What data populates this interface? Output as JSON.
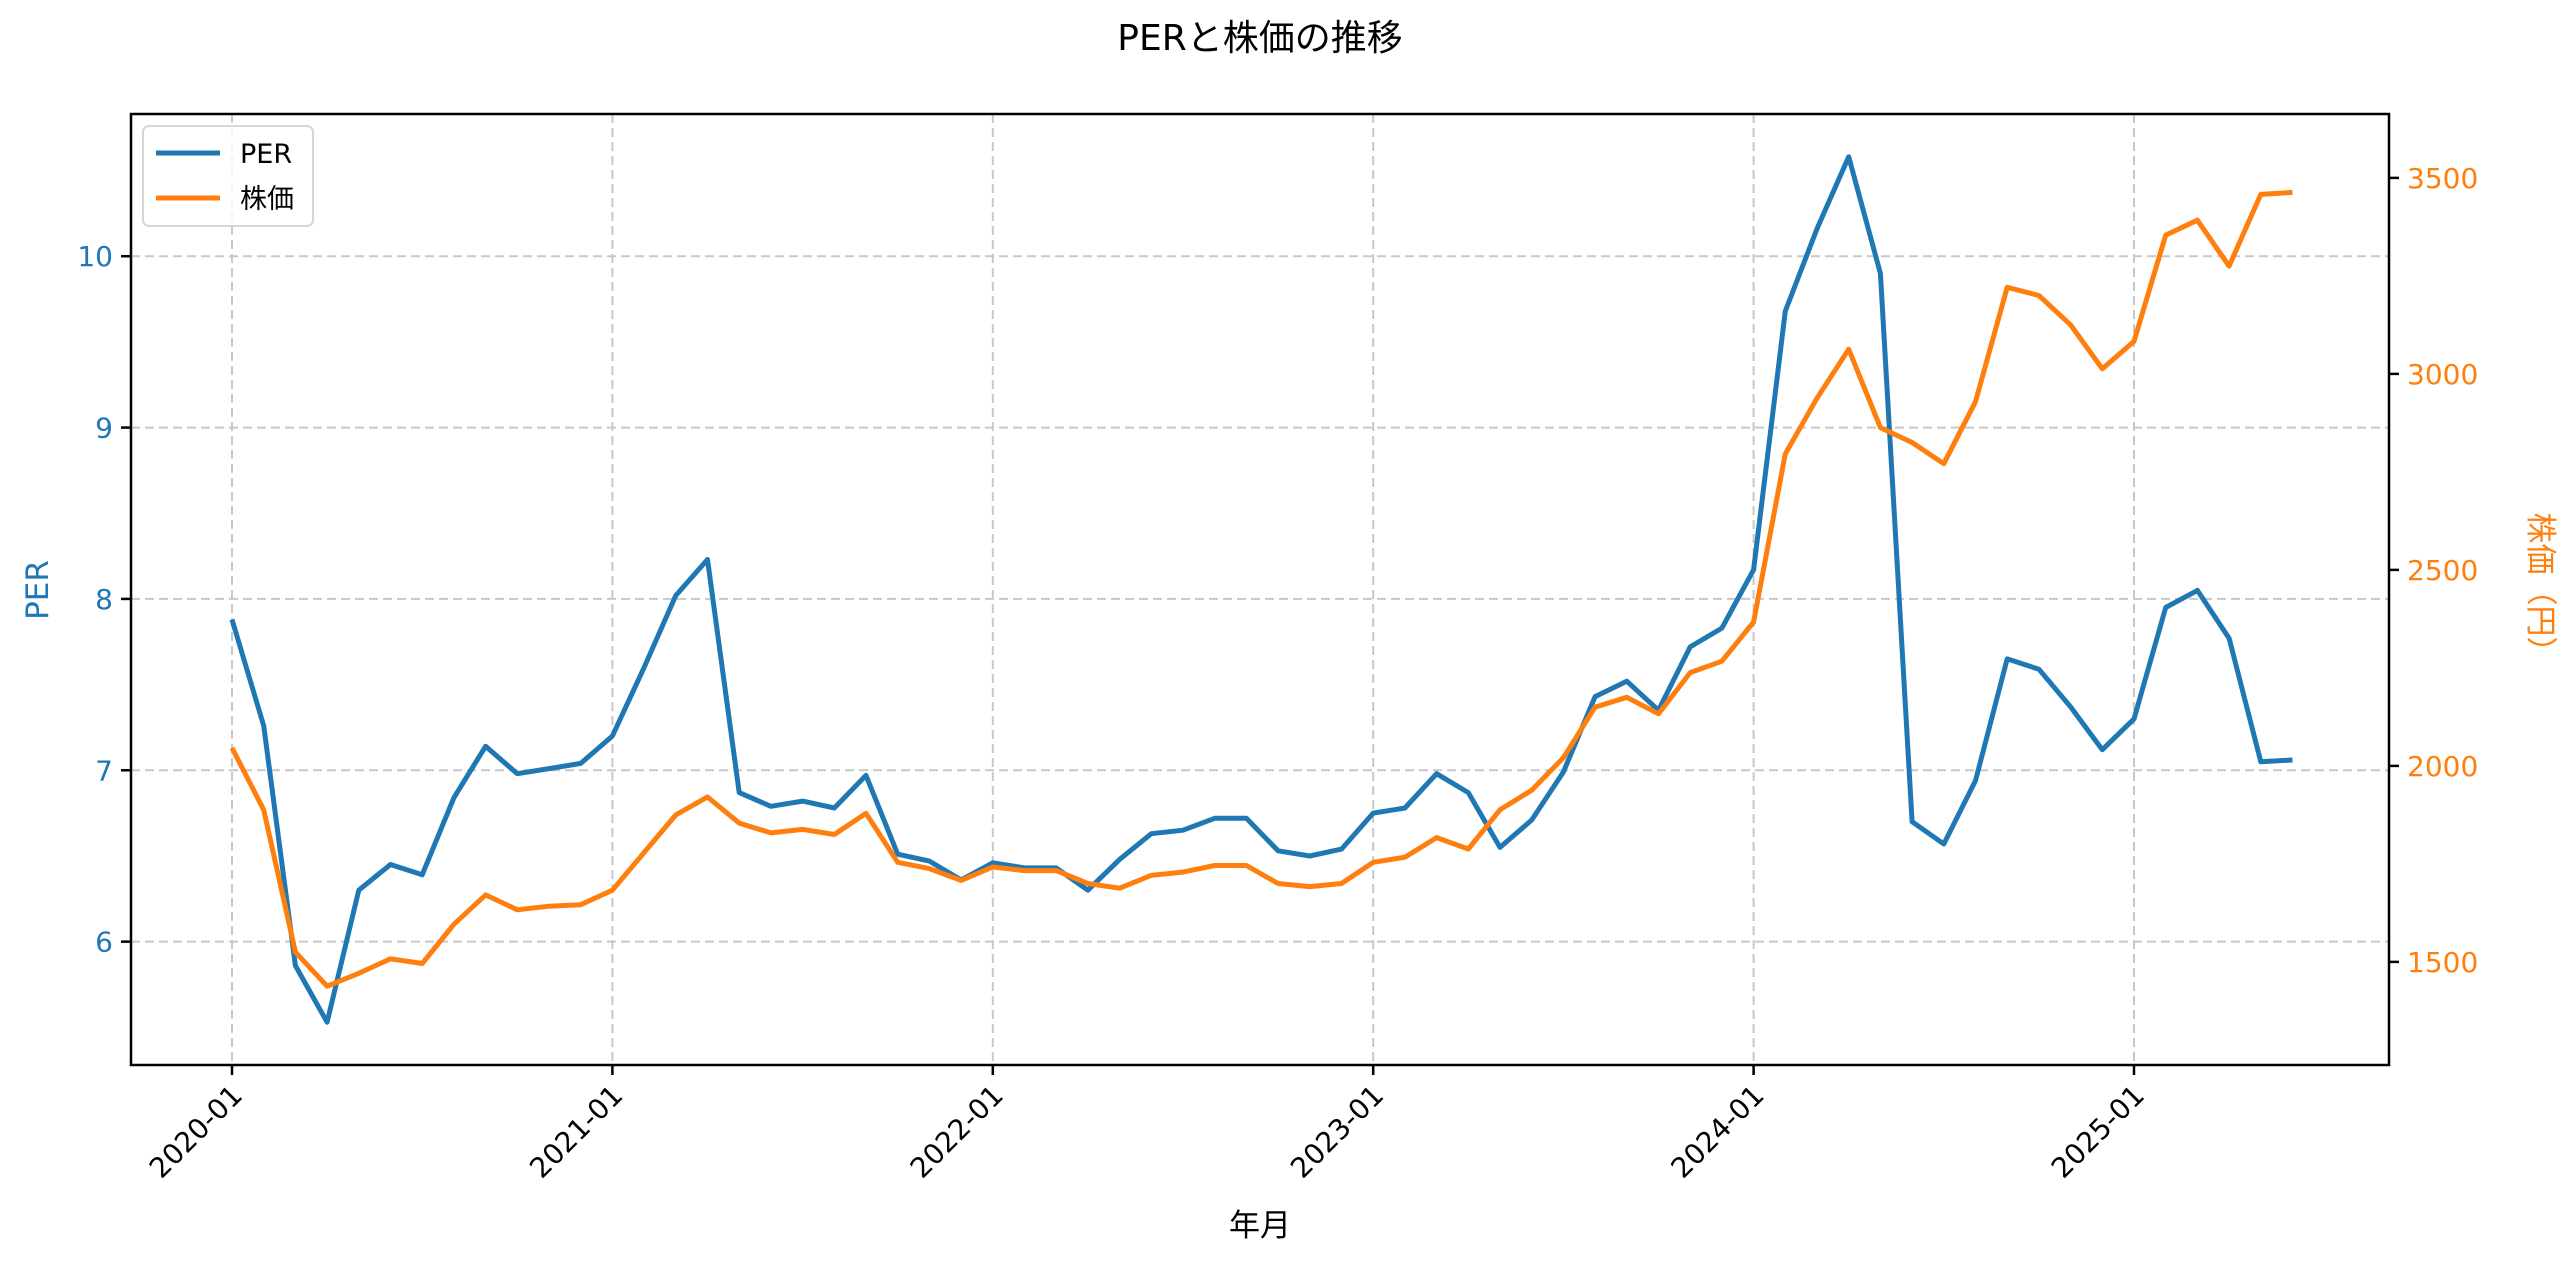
{
  "chart_data": {
    "type": "line",
    "title": "PERと株価の推移",
    "xlabel": "年月",
    "ylabel": "PER",
    "ylabel_right": "株価（円）",
    "x_tick_labels": [
      "2020-01",
      "2021-01",
      "2022-01",
      "2023-01",
      "2024-01",
      "2025-01"
    ],
    "y_ticks_left": [
      6,
      7,
      8,
      9,
      10
    ],
    "y_ticks_right": [
      1500,
      2000,
      2500,
      3000,
      3500
    ],
    "ylim_left": [
      5.28,
      10.83
    ],
    "ylim_right": [
      1237,
      3663
    ],
    "grid": true,
    "legend_position": "upper left",
    "x": [
      "2020-01",
      "2020-02",
      "2020-03",
      "2020-04",
      "2020-05",
      "2020-06",
      "2020-07",
      "2020-08",
      "2020-09",
      "2020-10",
      "2020-11",
      "2020-12",
      "2021-01",
      "2021-02",
      "2021-03",
      "2021-04",
      "2021-05",
      "2021-06",
      "2021-07",
      "2021-08",
      "2021-09",
      "2021-10",
      "2021-11",
      "2021-12",
      "2022-01",
      "2022-02",
      "2022-03",
      "2022-04",
      "2022-05",
      "2022-06",
      "2022-07",
      "2022-08",
      "2022-09",
      "2022-10",
      "2022-11",
      "2022-12",
      "2023-01",
      "2023-02",
      "2023-03",
      "2023-04",
      "2023-05",
      "2023-06",
      "2023-07",
      "2023-08",
      "2023-09",
      "2023-10",
      "2023-11",
      "2023-12",
      "2024-01",
      "2024-02",
      "2024-03",
      "2024-04",
      "2024-05",
      "2024-06",
      "2024-07",
      "2024-08",
      "2024-09",
      "2024-10",
      "2024-11",
      "2024-12",
      "2025-01",
      "2025-02",
      "2025-03",
      "2025-04",
      "2025-05",
      "2025-06"
    ],
    "series": [
      {
        "name": "PER",
        "axis": "left",
        "color": "#1f77b4",
        "values": [
          7.88,
          7.26,
          5.86,
          5.53,
          6.3,
          6.45,
          6.39,
          6.84,
          7.14,
          6.98,
          7.01,
          7.04,
          7.2,
          7.6,
          8.02,
          8.23,
          6.87,
          6.79,
          6.82,
          6.78,
          6.97,
          6.51,
          6.47,
          6.36,
          6.46,
          6.43,
          6.43,
          6.3,
          6.48,
          6.63,
          6.65,
          6.72,
          6.72,
          6.53,
          6.5,
          6.54,
          6.75,
          6.78,
          6.98,
          6.87,
          6.55,
          6.71,
          6.99,
          7.43,
          7.52,
          7.35,
          7.72,
          7.83,
          8.17,
          9.68,
          10.16,
          10.58,
          9.9,
          6.7,
          6.57,
          6.94,
          7.65,
          7.59,
          7.37,
          7.12,
          7.3,
          7.95,
          8.05,
          7.77,
          7.05,
          7.06
        ]
      },
      {
        "name": "株価",
        "axis": "right",
        "color": "#ff7f0e",
        "values": [
          2046,
          1888,
          1525,
          1438,
          1471,
          1508,
          1496,
          1596,
          1671,
          1633,
          1642,
          1646,
          1683,
          1779,
          1875,
          1921,
          1854,
          1829,
          1838,
          1825,
          1879,
          1754,
          1738,
          1708,
          1742,
          1733,
          1733,
          1700,
          1688,
          1721,
          1729,
          1746,
          1746,
          1700,
          1692,
          1700,
          1754,
          1767,
          1817,
          1788,
          1888,
          1938,
          2021,
          2150,
          2175,
          2133,
          2238,
          2267,
          2367,
          2796,
          2938,
          3063,
          2863,
          2825,
          2771,
          2929,
          3221,
          3200,
          3125,
          3013,
          3083,
          3354,
          3392,
          3275,
          3458,
          3463
        ]
      }
    ]
  },
  "legend": {
    "items": [
      {
        "label": "PER",
        "color": "#1f77b4"
      },
      {
        "label": "株価",
        "color": "#ff7f0e"
      }
    ]
  },
  "colors": {
    "per": "#1f77b4",
    "price": "#ff7f0e",
    "grid": "#c8c8c8",
    "axis": "#000000"
  }
}
